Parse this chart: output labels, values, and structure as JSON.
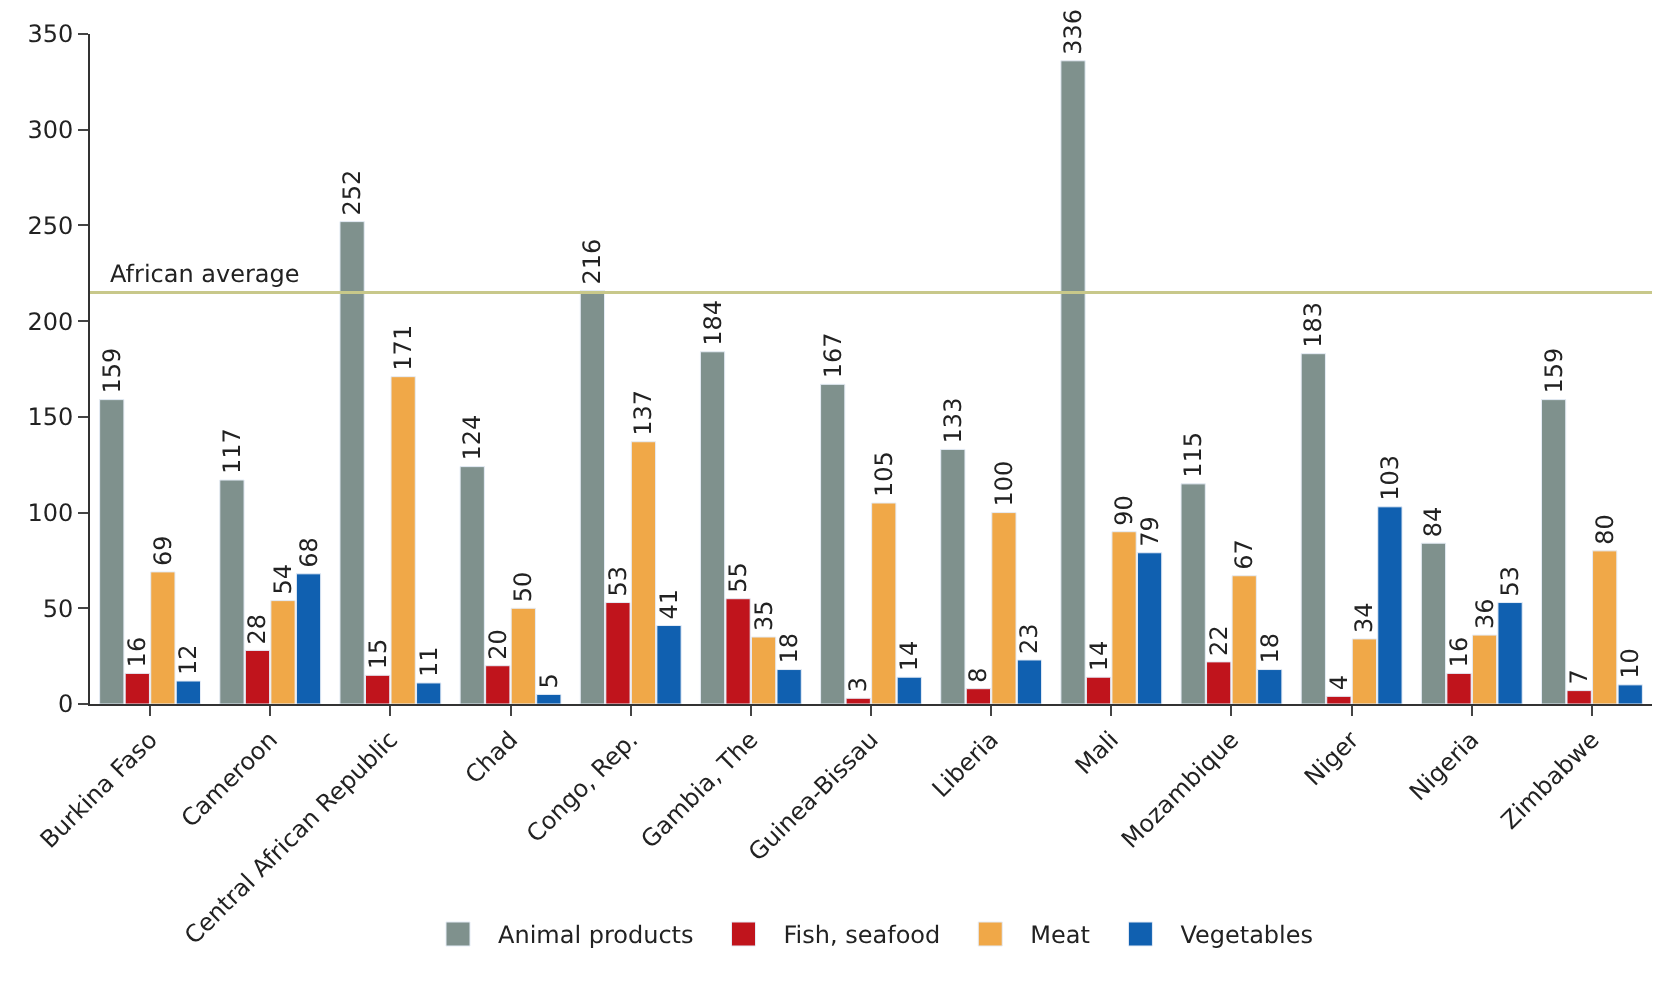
{
  "chart_data": {
    "type": "bar",
    "categories": [
      "Burkina Faso",
      "Cameroon",
      "Central African Republic",
      "Chad",
      "Congo, Rep.",
      "Gambia, The",
      "Guinea-Bissau",
      "Liberia",
      "Mali",
      "Mozambique",
      "Niger",
      "Nigeria",
      "Zimbabwe"
    ],
    "series": [
      {
        "name": "Animal products",
        "color": "#7f918d",
        "values": [
          159,
          117,
          252,
          124,
          216,
          184,
          167,
          133,
          336,
          115,
          183,
          84,
          159
        ]
      },
      {
        "name": "Fish, seafood",
        "color": "#c0141c",
        "values": [
          16,
          28,
          15,
          20,
          53,
          55,
          3,
          8,
          14,
          22,
          4,
          16,
          7
        ]
      },
      {
        "name": "Meat",
        "color": "#f0a848",
        "values": [
          69,
          54,
          171,
          50,
          137,
          35,
          105,
          100,
          90,
          67,
          34,
          36,
          80
        ]
      },
      {
        "name": "Vegetables",
        "color": "#1060b0",
        "values": [
          12,
          68,
          11,
          5,
          41,
          18,
          14,
          23,
          79,
          18,
          103,
          53,
          10
        ]
      }
    ],
    "ylim": [
      0,
      350
    ],
    "yticks": [
      0,
      50,
      100,
      150,
      200,
      250,
      300,
      350
    ],
    "ref_lines": [
      {
        "axis": "y",
        "value": 215,
        "label": "African average",
        "color": "#c8c88a"
      }
    ],
    "data_labels": true,
    "legend": "bottom"
  }
}
